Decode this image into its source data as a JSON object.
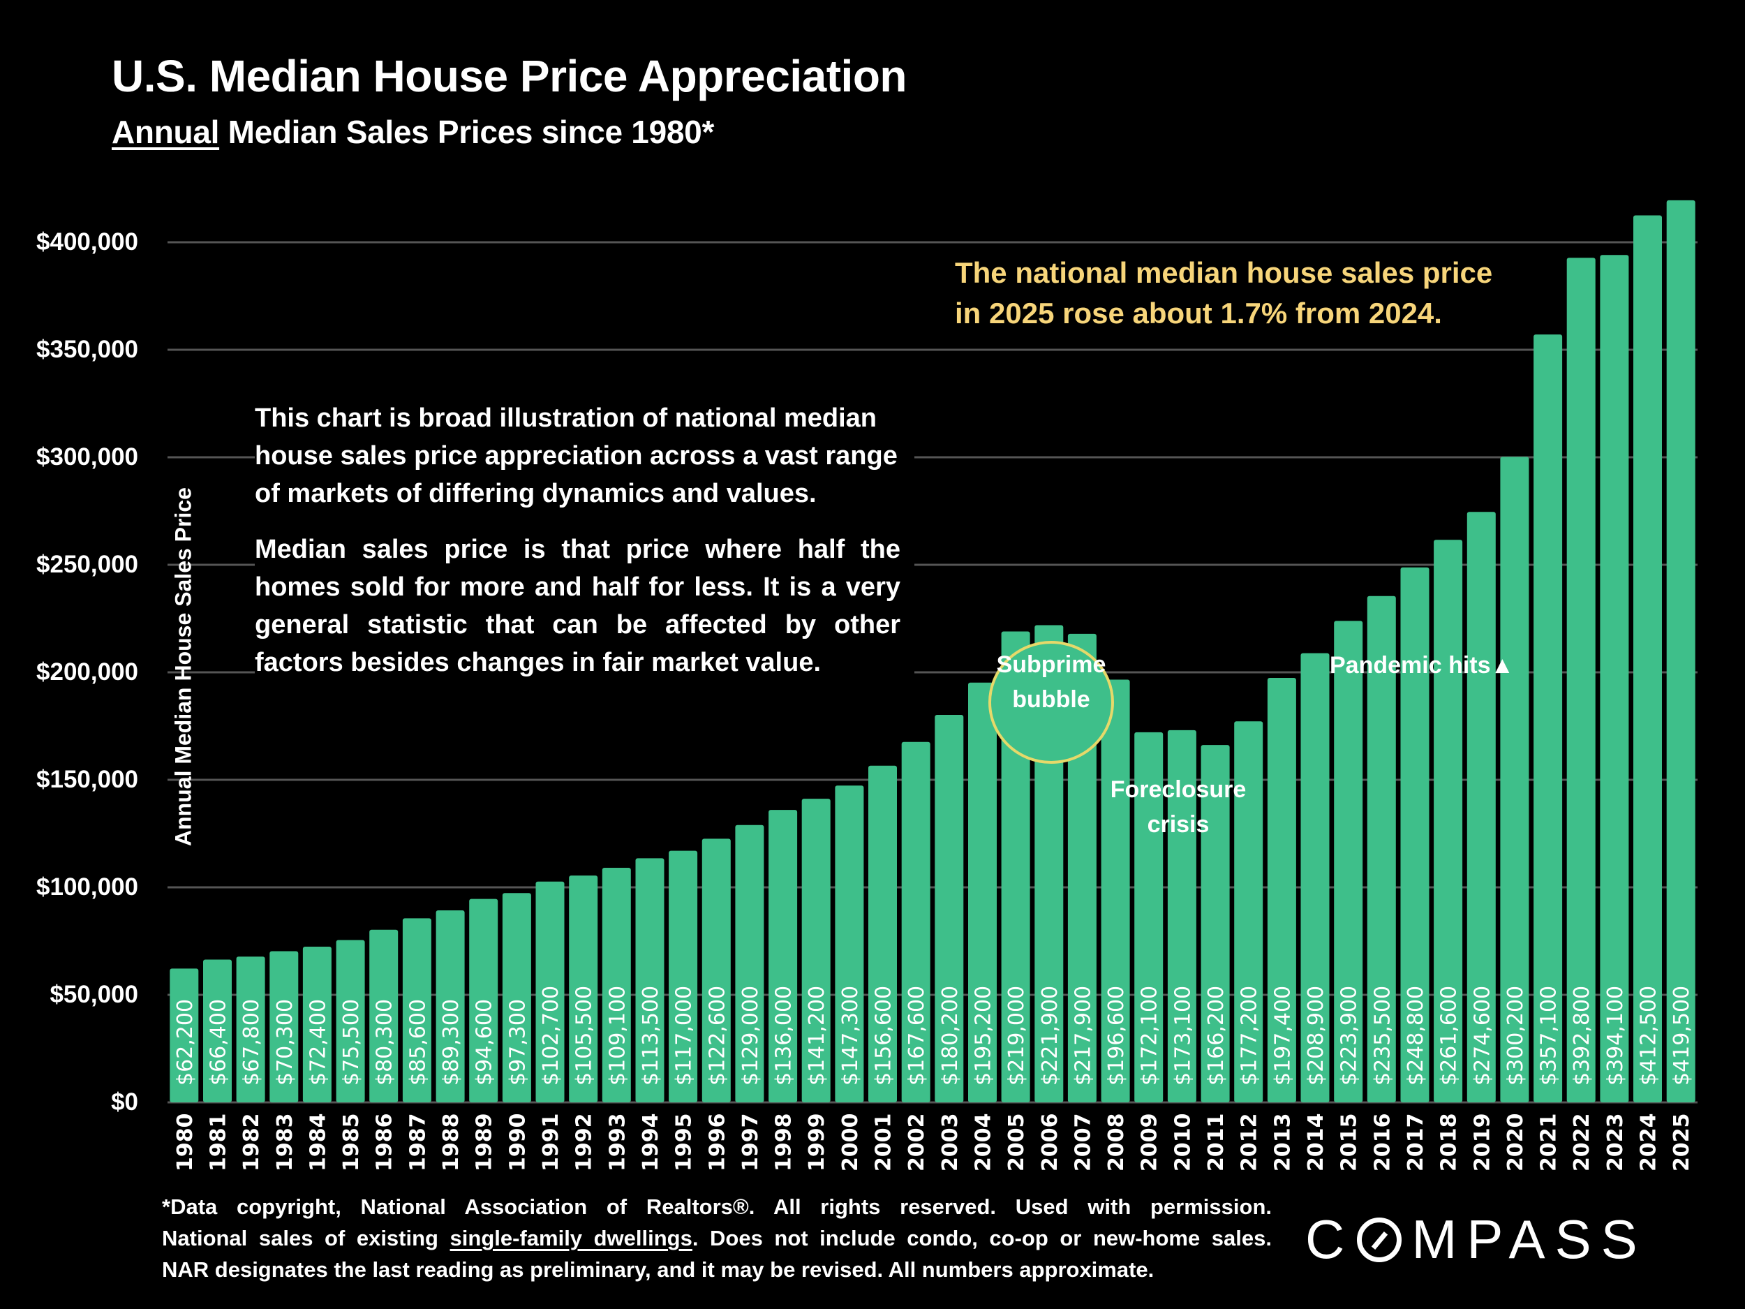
{
  "header": {
    "title": "U.S. Median House Price Appreciation",
    "subtitle_underlined": "Annual",
    "subtitle_rest": " Median Sales Prices since 1980*"
  },
  "colors": {
    "bar": "#3ebf8a",
    "gridline": "#555555",
    "callout_text": "#f7d57a",
    "bubble_ring": "#e6d96a",
    "background": "#000000"
  },
  "chart_data": {
    "type": "bar",
    "title": "U.S. Median House Price Appreciation",
    "subtitle": "Annual Median Sales Prices since 1980*",
    "xlabel": "",
    "ylabel": "Annual Median House Sales Price",
    "ylim": [
      0,
      400000
    ],
    "grid": true,
    "legend": "none",
    "yticks": [
      0,
      50000,
      100000,
      150000,
      200000,
      250000,
      300000,
      350000,
      400000
    ],
    "ytick_labels": [
      "$0",
      "$50,000",
      "$100,000",
      "$150,000",
      "$200,000",
      "$250,000",
      "$300,000",
      "$350,000",
      "$400,000"
    ],
    "categories": [
      "1980",
      "1981",
      "1982",
      "1983",
      "1984",
      "1985",
      "1986",
      "1987",
      "1988",
      "1989",
      "1990",
      "1991",
      "1992",
      "1993",
      "1994",
      "1995",
      "1996",
      "1997",
      "1998",
      "1999",
      "2000",
      "2001",
      "2002",
      "2003",
      "2004",
      "2005",
      "2006",
      "2007",
      "2008",
      "2009",
      "2010",
      "2011",
      "2012",
      "2013",
      "2014",
      "2015",
      "2016",
      "2017",
      "2018",
      "2019",
      "2020",
      "2021",
      "2022",
      "2023",
      "2024",
      "2025"
    ],
    "values": [
      62200,
      66400,
      67800,
      70300,
      72400,
      75500,
      80300,
      85600,
      89300,
      94600,
      97300,
      102700,
      105500,
      109100,
      113500,
      117000,
      122600,
      129000,
      136000,
      141200,
      147300,
      156600,
      167600,
      180200,
      195200,
      219000,
      221900,
      217900,
      196600,
      172100,
      173100,
      166200,
      177200,
      197400,
      208900,
      223900,
      235500,
      248800,
      261600,
      274600,
      300200,
      357100,
      392800,
      394100,
      412500,
      419500
    ],
    "data_labels": [
      "$62,200",
      "$66,400",
      "$67,800",
      "$70,300",
      "$72,400",
      "$75,500",
      "$80,300",
      "$85,600",
      "$89,300",
      "$94,600",
      "$97,300",
      "$102,700",
      "$105,500",
      "$109,100",
      "$113,500",
      "$117,000",
      "$122,600",
      "$129,000",
      "$136,000",
      "$141,200",
      "$147,300",
      "$156,600",
      "$167,600",
      "$180,200",
      "$195,200",
      "$219,000",
      "$221,900",
      "$217,900",
      "$196,600",
      "$172,100",
      "$173,100",
      "$166,200",
      "$177,200",
      "$197,400",
      "$208,900",
      "$223,900",
      "$235,500",
      "$248,800",
      "$261,600",
      "$274,600",
      "$300,200",
      "$357,100",
      "$392,800",
      "$394,100",
      "$412,500",
      "$419,500"
    ],
    "annotations": [
      {
        "text_lines": [
          "Subprime",
          "bubble"
        ],
        "near": "2005-2007",
        "style": "circled"
      },
      {
        "text_lines": [
          "Foreclosure",
          "crisis"
        ],
        "near": "2009-2011"
      },
      {
        "text": "Pandemic hits▲",
        "near": "2020"
      }
    ]
  },
  "callout": {
    "lines": [
      "The national median house sales price",
      "in 2025 rose about 1.7% from 2024."
    ]
  },
  "note": {
    "paragraph1": "This chart is broad illustration of national median house sales price appreciation across a vast range of markets of differing dynamics and values.",
    "paragraph2": "Median sales price is that price where half the homes sold for more and half for less. It is a very general statistic that can be affected by other factors besides changes in fair market value."
  },
  "footnote": {
    "line1": "*Data copyright, National Association of Realtors®. All rights reserved. Used with permission.",
    "line2_before": "National sales of existing ",
    "line2_underlined": "single-family dwellings",
    "line2_after": ". Does not include condo, co-op or new-home sales.",
    "line3": "NAR designates the last reading as preliminary, and it may be revised. All numbers approximate."
  },
  "logo": {
    "before": "C",
    "after": "MPASS"
  }
}
